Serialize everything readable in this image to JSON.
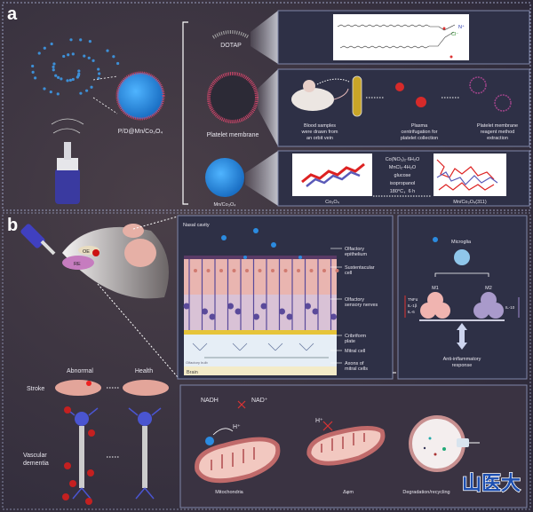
{
  "panel_a": {
    "label": "a",
    "nanoparticle_label": "P/D@Mn/Co₃O₄",
    "components": {
      "dotap": "DOTAP",
      "platelet_membrane": "Platelet membrane",
      "mn_co3o4": "Mn/Co₃O₄"
    },
    "dotap_box": {
      "chloride": "Cl⁻",
      "nitrogen": "N⁺"
    },
    "platelet_steps": [
      [
        "Blood samples",
        "were drawn from",
        "an orbit vein"
      ],
      [
        "Plasma",
        "centrifugation for",
        "platelet collection"
      ],
      [
        "Platelet membrane",
        "reagent method",
        "extraction"
      ]
    ],
    "synthesis": {
      "reagents": [
        "Co(NO₃)₂·6H₂O",
        "MnCl₂·4H₂O",
        "glucose",
        "isopropanol",
        "180°C，6 h"
      ],
      "start_label": "Co₃O₄",
      "product_label": "Mn/Co₃O₄(311)"
    }
  },
  "panel_b": {
    "label": "b",
    "mouse_labels": {
      "oe": "OE",
      "re": "RE"
    },
    "conditions": {
      "abnormal": "Abnormal",
      "health": "Health",
      "stroke": "Stroke",
      "vascular_dementia": [
        "Vascular",
        "dementia"
      ]
    },
    "nasal": {
      "title": "Nasal cavity",
      "layers": [
        [
          "Olfactory",
          "epithelium"
        ],
        [
          "Sustentacular",
          "cell"
        ],
        [
          "Olfactory",
          "sensory nerves"
        ],
        [
          "Cribriform",
          "plate"
        ],
        [
          "Mitral cell"
        ],
        [
          "Axons of",
          "mitral cells"
        ]
      ],
      "olfactory_bulb": "Olfactory bulb",
      "brain": "Brain"
    },
    "microglia": {
      "title": "Microglia",
      "m1": "M1",
      "m2": "M2",
      "m1_cytokines": [
        "TNFα",
        "IL-1β",
        "IL-6"
      ],
      "m2_cytokines": [
        "IL-10"
      ],
      "response": [
        "Anti-inflammatory",
        "response"
      ]
    },
    "mitochondria": {
      "nadh": "NADH",
      "nad": "NAD⁺",
      "h_plus": "H⁺",
      "labels": [
        "Mitochondria",
        "Δφm",
        "Degradation/recycling"
      ]
    },
    "watermark": "山医大"
  },
  "colors": {
    "background": "#3b3440",
    "box_border": "#7f86a8",
    "nanoparticle": "#2b8be0",
    "membrane": "#d0466a",
    "mitochondria": "#c97b7b",
    "watermark": "#1d4fb0"
  }
}
